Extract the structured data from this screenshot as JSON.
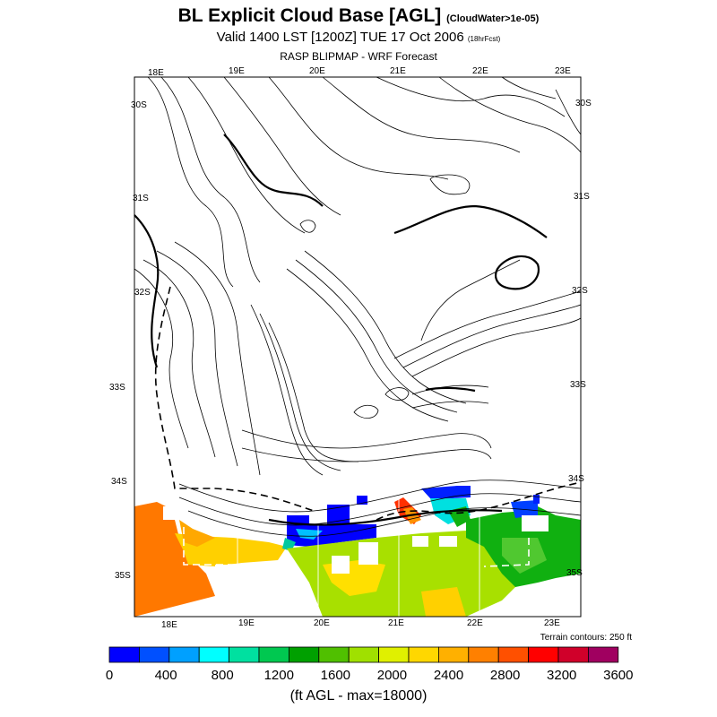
{
  "header": {
    "title": "BL Explicit Cloud Base [AGL]",
    "title_note": "(CloudWater>1e-05)",
    "subtitle": "Valid 1400 LST [1200Z] TUE 17 Oct 2006",
    "subtitle_note": "(18hrFcst)",
    "source": "RASP BLIPMAP - WRF Forecast"
  },
  "map": {
    "lon_labels_top": [
      "18E",
      "19E",
      "20E",
      "21E",
      "22E",
      "23E"
    ],
    "lon_labels_bottom": [
      "18E",
      "19E",
      "20E",
      "21E",
      "22E",
      "23E"
    ],
    "lat_labels_left": [
      "30S",
      "31S",
      "32S",
      "33S",
      "34S",
      "35S"
    ],
    "lat_labels_right": [
      "30S",
      "31S",
      "32S",
      "33S",
      "34S",
      "35S"
    ],
    "terrain_note": "Terrain contours: 250 ft"
  },
  "colorbar": {
    "colors": [
      "#0000ff",
      "#0050ff",
      "#00a0ff",
      "#00ffff",
      "#00e0a0",
      "#00c850",
      "#00a000",
      "#50c000",
      "#a0e000",
      "#e0f000",
      "#ffd700",
      "#ffb000",
      "#ff8000",
      "#ff5000",
      "#ff0000",
      "#d0002a",
      "#a00060"
    ],
    "tick_labels": [
      "0",
      "400",
      "800",
      "1200",
      "1600",
      "2000",
      "2400",
      "2800",
      "3200",
      "3600"
    ],
    "units": "(ft AGL - max=18000)"
  }
}
